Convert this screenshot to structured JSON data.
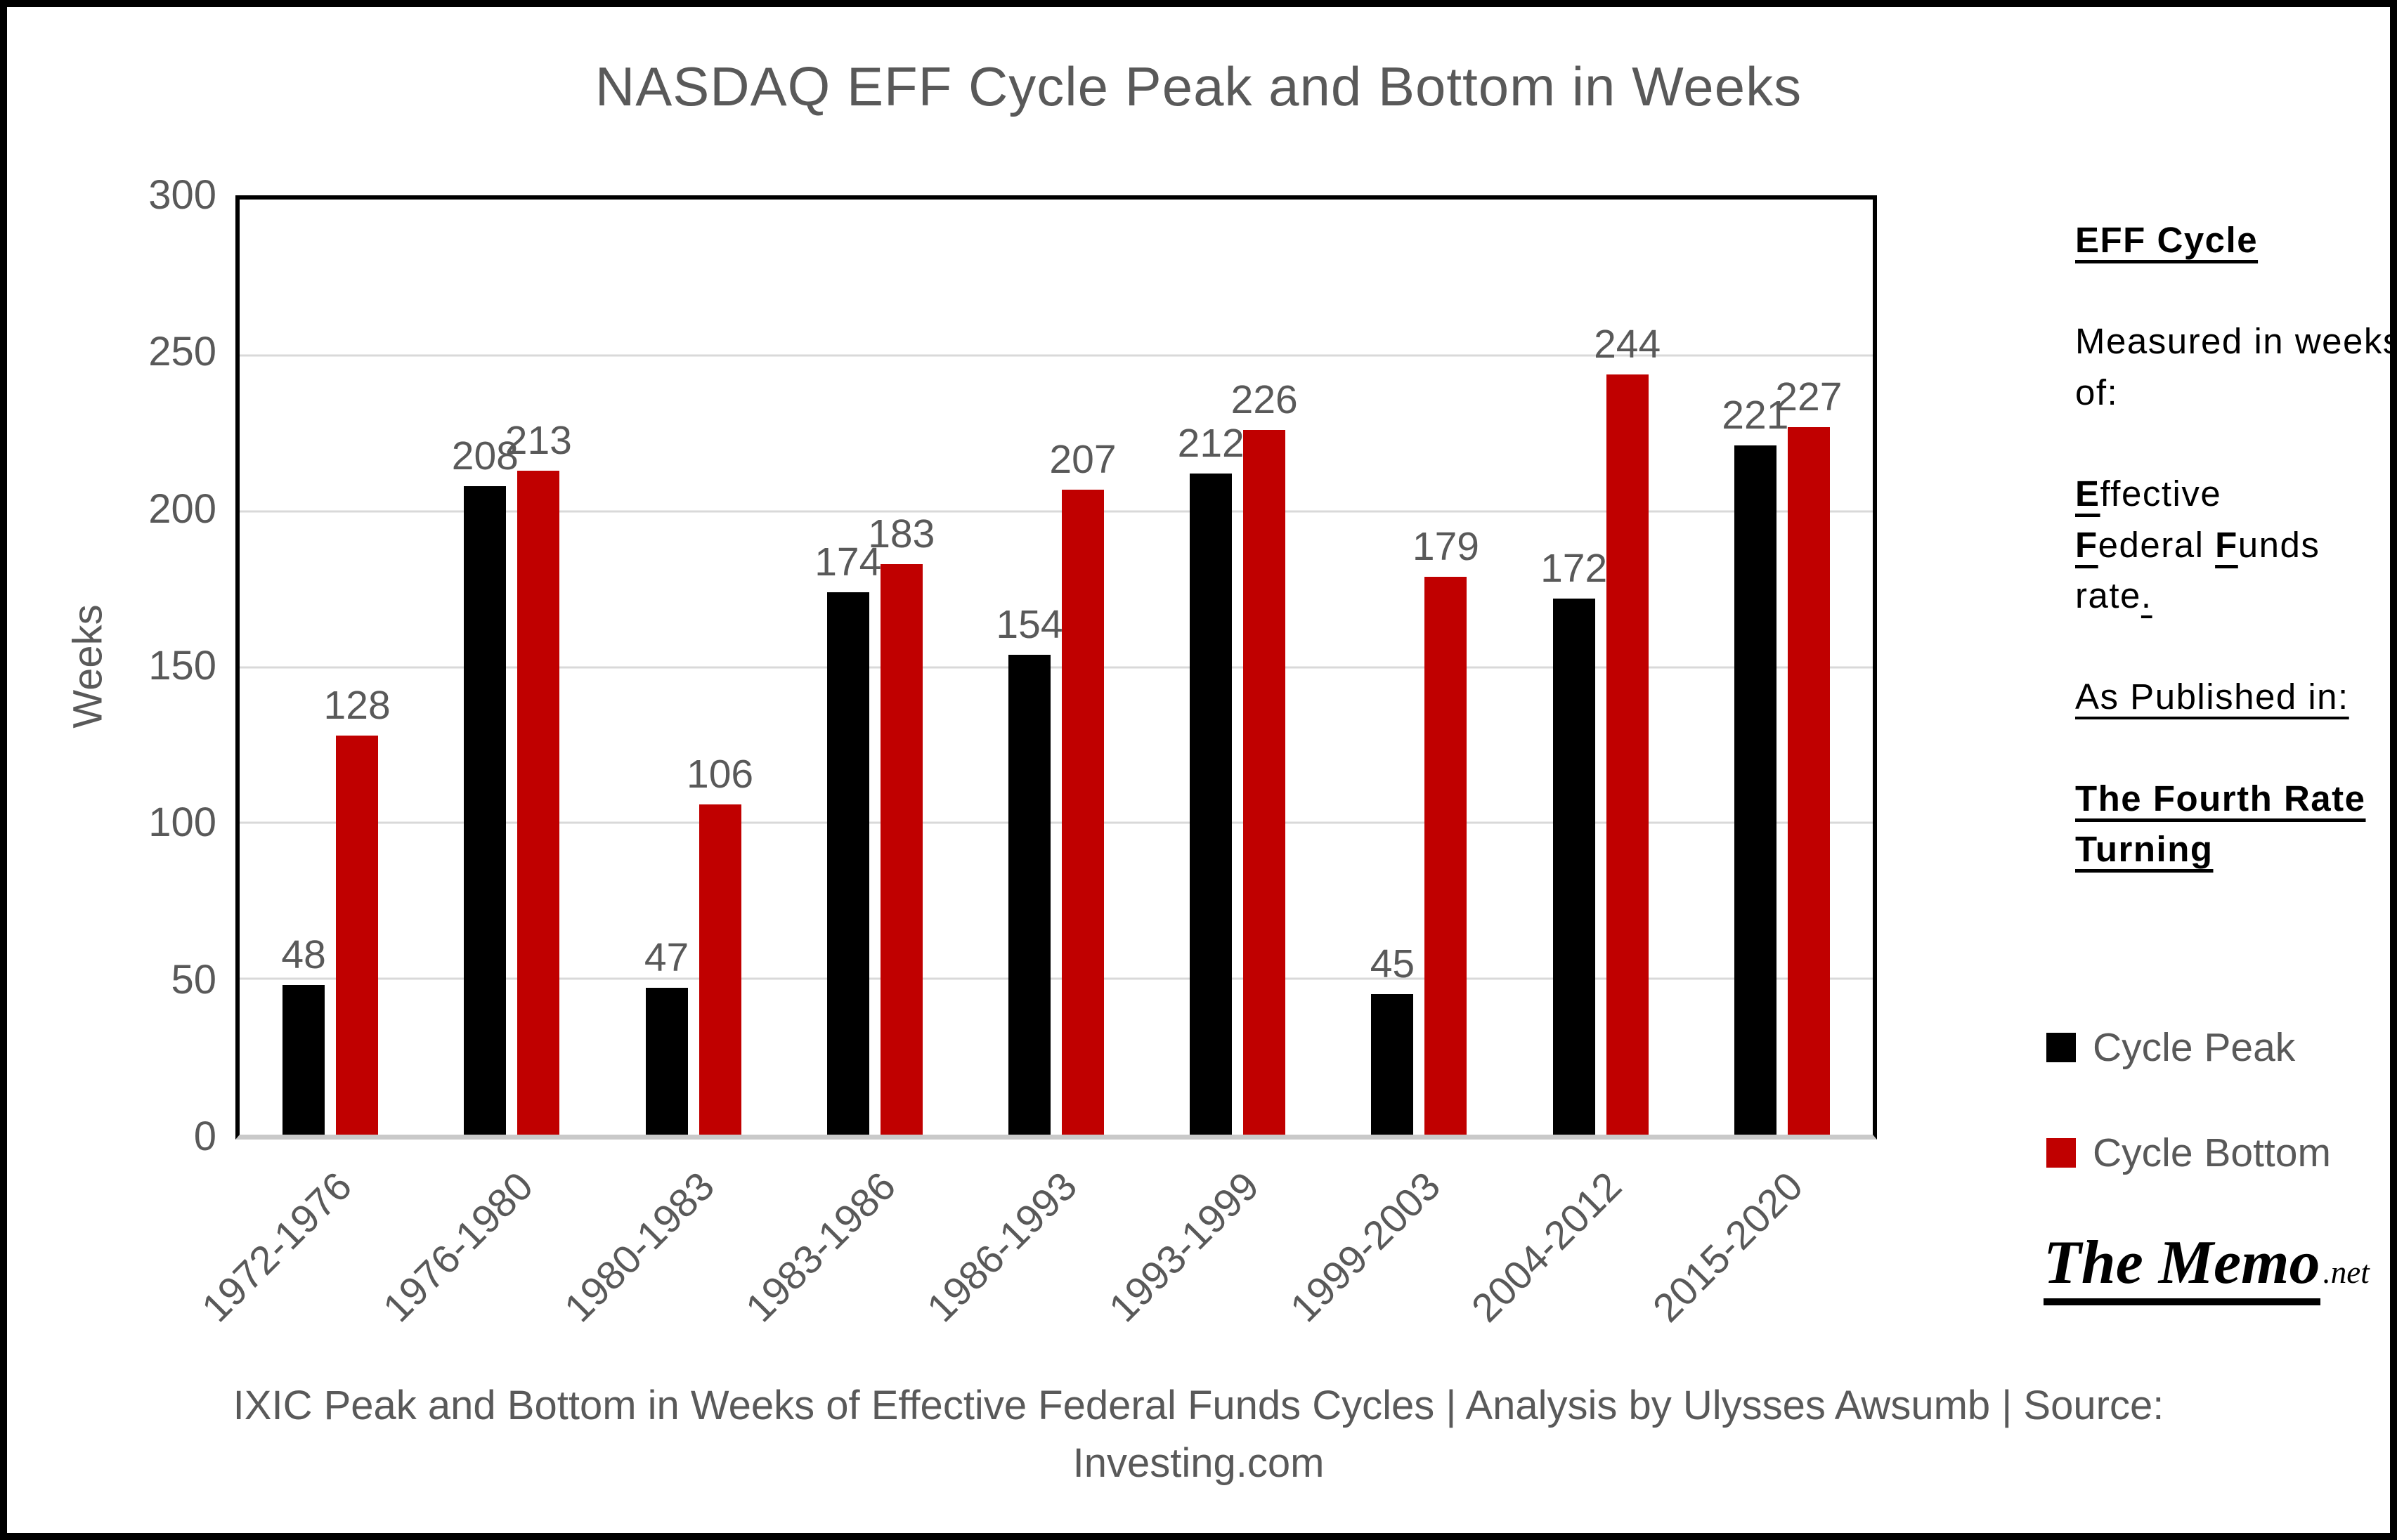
{
  "title": "NASDAQ EFF Cycle Peak and Bottom in Weeks",
  "y_axis": {
    "label": "Weeks",
    "ticks": [
      300,
      250,
      200,
      150,
      100,
      50,
      0
    ]
  },
  "chart_data": {
    "type": "bar",
    "title": "NASDAQ EFF Cycle Peak and Bottom in Weeks",
    "categories": [
      "1972-1976",
      "1976-1980",
      "1980-1983",
      "1983-1986",
      "1986-1993",
      "1993-1999",
      "1999-2003",
      "2004-2012",
      "2015-2020"
    ],
    "series": [
      {
        "name": "Cycle Peak",
        "color": "#000000",
        "values": [
          48,
          208,
          47,
          174,
          154,
          212,
          45,
          172,
          221
        ]
      },
      {
        "name": "Cycle Bottom",
        "color": "#C00000",
        "values": [
          128,
          213,
          106,
          183,
          207,
          226,
          179,
          244,
          227
        ]
      }
    ],
    "xlabel": "",
    "ylabel": "Weeks",
    "ylim": [
      0,
      300
    ],
    "grid": true,
    "gridline_step": 50,
    "legend_position": "right",
    "data_labels": true
  },
  "colors": {
    "peak": "#000000",
    "bottom": "#C00000",
    "text_gray": "#595959",
    "gridline": "#D9D9D9"
  },
  "legend": {
    "items": [
      {
        "label": "Cycle Peak",
        "color": "#000000"
      },
      {
        "label": "Cycle Bottom",
        "color": "#C00000"
      }
    ]
  },
  "sidebar": {
    "heading": "EFF Cycle",
    "measured": "Measured in weeks of:",
    "eff": {
      "e": "E",
      "ffective": "ffective",
      "f1": "F",
      "ederal": "ederal",
      "f2": "F",
      "unds": "unds",
      "rate": "rate",
      "dot": "."
    },
    "published": "As Published in:",
    "book": "The Fourth Rate Turning"
  },
  "logo": {
    "main": "The Memo",
    "suffix": ".net"
  },
  "caption": {
    "line1": "IXIC Peak and Bottom in Weeks of Effective Federal Funds Cycles | Analysis by Ulysses Awsumb | Source:",
    "line2": "Investing.com"
  }
}
